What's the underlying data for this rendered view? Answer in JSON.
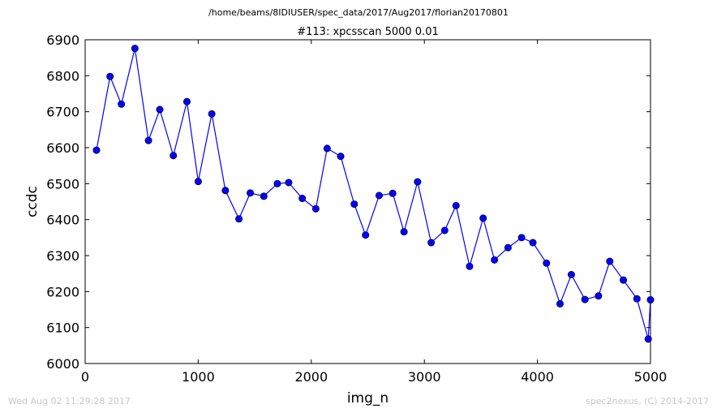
{
  "suptitle": "/home/beams/8IDIUSER/spec_data/2017/Aug2017/florian20170801",
  "footer": {
    "timestamp": "Wed Aug 02 11:29:28 2017",
    "credit": "spec2nexus, (C) 2014-2017"
  },
  "chart_data": {
    "type": "line",
    "title": "#113: xpcsscan 5000 0.01",
    "xlabel": "img_n",
    "ylabel": "ccdc",
    "xlim": [
      0,
      5000
    ],
    "ylim": [
      6000,
      6900
    ],
    "xticks": [
      0,
      1000,
      2000,
      3000,
      4000,
      5000
    ],
    "yticks": [
      6000,
      6100,
      6200,
      6300,
      6400,
      6500,
      6600,
      6700,
      6800,
      6900
    ],
    "grid": false,
    "line_color": "#0000ff",
    "marker": "circle",
    "series": [
      {
        "x": [
          100,
          220,
          320,
          440,
          560,
          660,
          780,
          900,
          1000,
          1120,
          1240,
          1360,
          1460,
          1580,
          1700,
          1800,
          1920,
          2040,
          2140,
          2260,
          2380,
          2480,
          2600,
          2720,
          2820,
          2940,
          3060,
          3180,
          3280,
          3400,
          3520,
          3620,
          3740,
          3860,
          3960,
          4080,
          4200,
          4300,
          4420,
          4540,
          4640,
          4760,
          4880,
          4980,
          5000
        ],
        "y": [
          6593,
          6798,
          6721,
          6876,
          6620,
          6706,
          6578,
          6728,
          6506,
          6694,
          6481,
          6402,
          6474,
          6465,
          6500,
          6503,
          6459,
          6430,
          6598,
          6576,
          6443,
          6357,
          6467,
          6473,
          6366,
          6505,
          6336,
          6370,
          6439,
          6270,
          6404,
          6288,
          6322,
          6350,
          6336,
          6279,
          6166,
          6247,
          6178,
          6188,
          6284,
          6232,
          6180,
          6068,
          6177
        ]
      }
    ]
  }
}
